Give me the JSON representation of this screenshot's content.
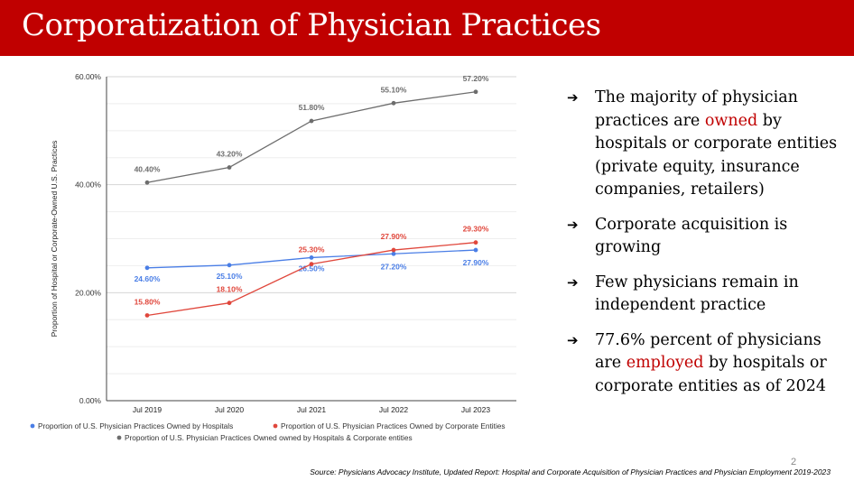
{
  "slide": {
    "title": "Corporatization of Physician Practices",
    "page_number": "2",
    "source": "Source: Physicians Advocacy Institute, Updated Report: Hospital and Corporate Acquisition of Physician Practices and Physician Employment 2019-2023"
  },
  "bullets": [
    {
      "arrow": "➔",
      "pre": "The majority of physician practices are ",
      "hl": "owned",
      "post": " by hospitals or corporate entities (private equity, insurance companies, retailers)"
    },
    {
      "arrow": "➔",
      "pre": "Corporate acquisition is growing",
      "hl": "",
      "post": ""
    },
    {
      "arrow": "➔",
      "pre": "Few physicians remain in independent practice",
      "hl": "",
      "post": ""
    },
    {
      "arrow": "➔",
      "pre": "77.6% percent of physicians are ",
      "hl": "employed",
      "post": " by hospitals or corporate entities as of 2024"
    }
  ],
  "colors": {
    "accent": "#c00000",
    "hospitals": "#4a7ee6",
    "corporate": "#e0473c",
    "combined": "#6d6d6d"
  },
  "chart_data": {
    "type": "line",
    "title": "",
    "xlabel": "",
    "ylabel": "Proportion of Hospital or Corporate-Owned U.S. Practices",
    "categories": [
      "Jul 2019",
      "Jul 2020",
      "Jul 2021",
      "Jul 2022",
      "Jul 2023"
    ],
    "ylim": [
      0,
      60
    ],
    "yticks": [
      0,
      20,
      40,
      60
    ],
    "ytick_labels": [
      "0.00%",
      "20.00%",
      "40.00%",
      "60.00%"
    ],
    "grid": true,
    "legend_position": "bottom",
    "series": [
      {
        "name": "Proportion of U.S. Physician Practices Owned by Hospitals",
        "color": "#4a7ee6",
        "values": [
          24.6,
          25.1,
          26.5,
          27.2,
          27.9
        ],
        "labels": [
          "24.60%",
          "25.10%",
          "26.50%",
          "27.20%",
          "27.90%"
        ]
      },
      {
        "name": "Proportion of U.S. Physician Practices Owned by Corporate Entities",
        "color": "#e0473c",
        "values": [
          15.8,
          18.1,
          25.3,
          27.9,
          29.3
        ],
        "labels": [
          "15.80%",
          "18.10%",
          "25.30%",
          "27.90%",
          "29.30%"
        ]
      },
      {
        "name": "Proportion of U.S. Physician Practices Owned owned by Hospitals & Corporate entities",
        "color": "#6d6d6d",
        "values": [
          40.4,
          43.2,
          51.8,
          55.1,
          57.2
        ],
        "labels": [
          "40.40%",
          "43.20%",
          "51.80%",
          "55.10%",
          "57.20%"
        ]
      }
    ]
  }
}
